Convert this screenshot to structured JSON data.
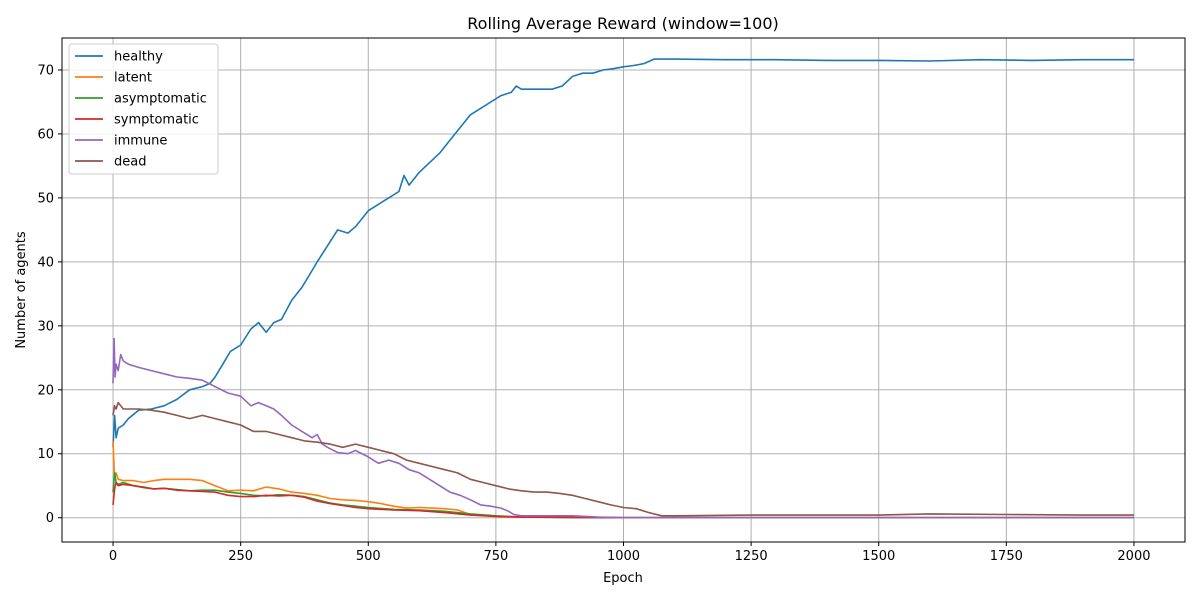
{
  "chart_data": {
    "type": "line",
    "title": "Rolling Average Reward (window=100)",
    "xlabel": "Epoch",
    "ylabel": "Number of agents",
    "xlim": [
      -100,
      2100
    ],
    "ylim": [
      -3.8,
      75
    ],
    "xticks": [
      0,
      250,
      500,
      750,
      1000,
      1250,
      1500,
      1750,
      2000
    ],
    "yticks": [
      0,
      10,
      20,
      30,
      40,
      50,
      60,
      70
    ],
    "grid": true,
    "legend_position": "top-left",
    "series": [
      {
        "name": "healthy",
        "color": "#1f77b4",
        "x": [
          0,
          3,
          6,
          10,
          20,
          30,
          50,
          75,
          100,
          125,
          150,
          175,
          190,
          200,
          215,
          230,
          250,
          270,
          285,
          300,
          315,
          330,
          350,
          370,
          385,
          400,
          420,
          440,
          460,
          475,
          490,
          500,
          520,
          540,
          560,
          570,
          580,
          600,
          620,
          640,
          660,
          680,
          700,
          720,
          740,
          760,
          780,
          790,
          800,
          820,
          840,
          860,
          880,
          900,
          920,
          940,
          960,
          980,
          1000,
          1020,
          1040,
          1060,
          1100,
          1200,
          1300,
          1400,
          1500,
          1600,
          1700,
          1800,
          1900,
          2000
        ],
        "y": [
          11,
          16,
          12.5,
          14,
          14.5,
          15.5,
          16.8,
          17,
          17.5,
          18.5,
          20,
          20.5,
          21,
          22,
          24,
          26,
          27,
          29.5,
          30.5,
          29,
          30.5,
          31,
          34,
          36,
          38,
          40,
          42.5,
          45,
          44.5,
          45.5,
          47,
          48,
          49,
          50,
          51,
          53.5,
          52,
          54,
          55.5,
          57,
          59,
          61,
          63,
          64,
          65,
          66,
          66.5,
          67.5,
          67,
          67,
          67,
          67,
          67.5,
          69,
          69.5,
          69.5,
          70,
          70.2,
          70.5,
          70.7,
          71,
          71.7,
          71.7,
          71.6,
          71.6,
          71.5,
          71.5,
          71.4,
          71.6,
          71.5,
          71.6,
          71.6
        ]
      },
      {
        "name": "latent",
        "color": "#ff7f0e",
        "x": [
          0,
          3,
          6,
          10,
          20,
          40,
          60,
          80,
          100,
          125,
          150,
          175,
          200,
          225,
          250,
          275,
          300,
          325,
          350,
          375,
          400,
          425,
          450,
          475,
          500,
          525,
          550,
          575,
          600,
          625,
          650,
          675,
          700,
          750,
          800,
          850,
          900,
          1000,
          1500,
          2000
        ],
        "y": [
          12,
          6,
          7,
          6,
          5.8,
          5.8,
          5.5,
          5.8,
          6,
          6,
          6,
          5.8,
          5,
          4.2,
          4.3,
          4.2,
          4.8,
          4.5,
          4,
          3.8,
          3.5,
          3,
          2.8,
          2.7,
          2.5,
          2.2,
          1.8,
          1.5,
          1.6,
          1.5,
          1.4,
          1.2,
          0.5,
          0.2,
          0.1,
          0.1,
          0.05,
          0,
          0,
          0
        ]
      },
      {
        "name": "asymptomatic",
        "color": "#2ca02c",
        "x": [
          0,
          3,
          6,
          10,
          20,
          40,
          60,
          80,
          100,
          125,
          150,
          175,
          200,
          225,
          250,
          275,
          300,
          325,
          350,
          375,
          400,
          425,
          450,
          475,
          500,
          550,
          600,
          650,
          700,
          750,
          800,
          900,
          1000,
          1500,
          2000
        ],
        "y": [
          4,
          7,
          5.5,
          5.2,
          5.5,
          5,
          4.8,
          4.5,
          4.6,
          4.4,
          4.2,
          4.3,
          4.3,
          4,
          3.8,
          3.5,
          3.4,
          3.6,
          3.5,
          3.3,
          2.8,
          2.3,
          2,
          1.8,
          1.6,
          1.3,
          1.2,
          1,
          0.6,
          0.3,
          0.1,
          0.05,
          0,
          0,
          0
        ]
      },
      {
        "name": "symptomatic",
        "color": "#d62728",
        "x": [
          0,
          3,
          6,
          10,
          20,
          40,
          60,
          80,
          100,
          125,
          150,
          175,
          200,
          225,
          250,
          275,
          300,
          325,
          350,
          375,
          400,
          425,
          450,
          475,
          500,
          550,
          600,
          650,
          700,
          750,
          800,
          900,
          1000,
          1500,
          2000
        ],
        "y": [
          2,
          4.5,
          5.5,
          5,
          5.2,
          5,
          4.7,
          4.5,
          4.6,
          4.3,
          4.2,
          4.1,
          4,
          3.5,
          3.3,
          3.3,
          3.5,
          3.4,
          3.5,
          3.2,
          2.6,
          2.2,
          1.9,
          1.6,
          1.4,
          1.2,
          1.1,
          0.8,
          0.4,
          0.2,
          0.1,
          0.05,
          0,
          0,
          0
        ]
      },
      {
        "name": "immune",
        "color": "#9467bd",
        "x": [
          0,
          2,
          4,
          6,
          10,
          15,
          20,
          30,
          50,
          75,
          100,
          125,
          150,
          175,
          200,
          225,
          250,
          270,
          285,
          300,
          315,
          330,
          350,
          370,
          390,
          400,
          410,
          420,
          440,
          460,
          475,
          500,
          520,
          540,
          560,
          580,
          600,
          620,
          640,
          660,
          680,
          700,
          720,
          740,
          760,
          775,
          785,
          800,
          850,
          900,
          950,
          1000,
          1500,
          2000
        ],
        "y": [
          21,
          28,
          22,
          24,
          23,
          25.5,
          24.5,
          24,
          23.5,
          23,
          22.5,
          22,
          21.8,
          21.5,
          20.5,
          19.5,
          19,
          17.5,
          18,
          17.5,
          17,
          16,
          14.5,
          13.5,
          12.5,
          13,
          11.5,
          11,
          10.2,
          10,
          10.5,
          9.5,
          8.5,
          9,
          8.5,
          7.5,
          7,
          6,
          5,
          4,
          3.5,
          2.8,
          2,
          1.8,
          1.5,
          1,
          0.5,
          0.3,
          0.3,
          0.3,
          0.1,
          0,
          0,
          0
        ]
      },
      {
        "name": "dead",
        "color": "#8c564b",
        "x": [
          0,
          3,
          6,
          10,
          15,
          20,
          30,
          50,
          75,
          100,
          125,
          150,
          175,
          200,
          225,
          250,
          275,
          300,
          325,
          350,
          375,
          400,
          425,
          450,
          475,
          500,
          525,
          550,
          575,
          600,
          625,
          650,
          675,
          700,
          725,
          750,
          775,
          800,
          825,
          850,
          875,
          900,
          925,
          950,
          975,
          1000,
          1025,
          1050,
          1075,
          1100,
          1250,
          1500,
          1600,
          1750,
          1900,
          2000
        ],
        "y": [
          16,
          17.5,
          17,
          18,
          17.5,
          17,
          17,
          17,
          16.8,
          16.5,
          16,
          15.5,
          16,
          15.5,
          15,
          14.5,
          13.5,
          13.5,
          13,
          12.5,
          12,
          11.8,
          11.5,
          11,
          11.5,
          11,
          10.5,
          10,
          9,
          8.5,
          8,
          7.5,
          7,
          6,
          5.5,
          5,
          4.5,
          4.2,
          4,
          4,
          3.8,
          3.5,
          3,
          2.5,
          2,
          1.6,
          1.4,
          0.8,
          0.3,
          0.3,
          0.4,
          0.4,
          0.6,
          0.5,
          0.4,
          0.4
        ]
      }
    ]
  }
}
